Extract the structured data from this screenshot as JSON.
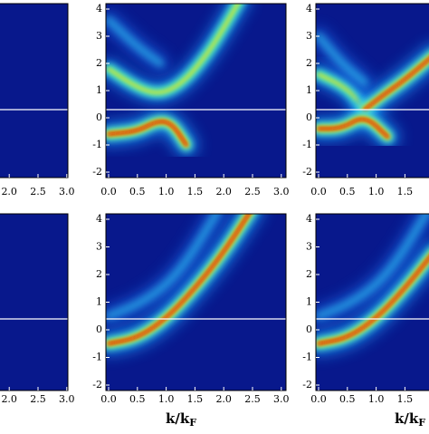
{
  "panels": [
    {
      "xticks": [],
      "yticks": []
    },
    {
      "xticks": [
        "0.0",
        "0.5",
        "1.0",
        "1.5",
        "2.0",
        "2.5",
        "3.0"
      ],
      "yticks": [
        "4",
        "3",
        "2",
        "1",
        "0",
        "-1",
        "-2"
      ]
    },
    {
      "xticks": [
        "0.0",
        "0.5",
        "1.0",
        "1.5"
      ],
      "yticks": [
        "4",
        "3",
        "2",
        "1",
        "0",
        "-1",
        "-2"
      ]
    },
    {
      "xticks": [
        "2.0",
        "2.5",
        "3.0"
      ],
      "yticks": []
    },
    {
      "xticks": [
        "0.0",
        "0.5",
        "1.0",
        "1.5",
        "2.0",
        "2.5",
        "3.0"
      ],
      "yticks": [
        "4",
        "3",
        "2",
        "1",
        "0",
        "-1",
        "-2"
      ]
    },
    {
      "xticks": [
        "0.0",
        "0.5",
        "1.0",
        "1.5"
      ],
      "yticks": [
        "4",
        "3",
        "2",
        "1",
        "0",
        "-1",
        "-2"
      ]
    }
  ],
  "top_left_xticks": [
    "2.0",
    "2.5",
    "3.0"
  ],
  "xlabel": "k/k",
  "xlabel_sub": "F"
}
